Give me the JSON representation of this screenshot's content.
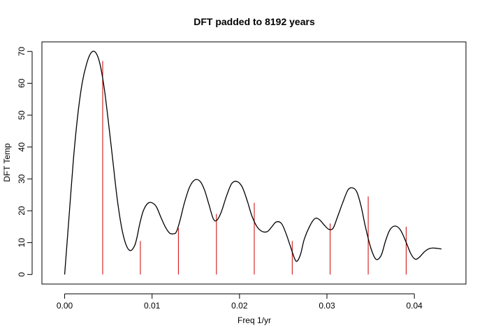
{
  "chart_data": {
    "type": "line",
    "title": "DFT padded to 8192 years",
    "xlabel": "Freq 1/yr",
    "ylabel": "DFT Temp",
    "xlim": [
      -0.0026,
      0.0459
    ],
    "ylim": [
      -3,
      73
    ],
    "xticks": [
      0.0,
      0.01,
      0.02,
      0.03,
      0.04
    ],
    "xtick_labels": [
      "0.00",
      "0.01",
      "0.02",
      "0.03",
      "0.04"
    ],
    "yticks": [
      0,
      10,
      20,
      30,
      40,
      50,
      60,
      70
    ],
    "ytick_labels": [
      "0",
      "10",
      "20",
      "30",
      "40",
      "50",
      "60",
      "70"
    ],
    "grid": false,
    "series": [
      {
        "color": "#000000",
        "x": [
          0.0,
          0.0005,
          0.001,
          0.0015,
          0.002,
          0.0025,
          0.003,
          0.0035,
          0.004,
          0.0045,
          0.005,
          0.0055,
          0.006,
          0.0065,
          0.007,
          0.0075,
          0.008,
          0.0083,
          0.0086,
          0.009,
          0.0095,
          0.01,
          0.0105,
          0.011,
          0.0115,
          0.012,
          0.0125,
          0.0128,
          0.0132,
          0.0137,
          0.0143,
          0.0149,
          0.0155,
          0.016,
          0.0165,
          0.017,
          0.0174,
          0.0179,
          0.0185,
          0.0191,
          0.0197,
          0.0203,
          0.0209,
          0.0214,
          0.022,
          0.0226,
          0.0232,
          0.0237,
          0.0242,
          0.0248,
          0.0253,
          0.0258,
          0.0263,
          0.0266,
          0.027,
          0.0274,
          0.028,
          0.0286,
          0.0291,
          0.0297,
          0.0302,
          0.0307,
          0.0312,
          0.0318,
          0.0324,
          0.0329,
          0.0334,
          0.0339,
          0.0344,
          0.035,
          0.0356,
          0.0362,
          0.0367,
          0.0372,
          0.0378,
          0.0384,
          0.039,
          0.0396,
          0.0401,
          0.0406,
          0.0411,
          0.0416,
          0.0421,
          0.0426,
          0.0431
        ],
        "y": [
          0,
          18,
          36,
          50,
          60,
          66,
          69.5,
          69.8,
          66.5,
          59,
          48,
          36,
          24,
          15,
          9.5,
          7.5,
          9,
          12,
          16,
          20,
          22.3,
          22.5,
          21.2,
          18,
          15,
          13,
          12.8,
          13.5,
          17,
          22.5,
          27.5,
          29.7,
          29.2,
          26.5,
          22,
          17.5,
          17,
          19.5,
          24.5,
          28.5,
          29.2,
          27.5,
          23,
          18.5,
          15,
          13.5,
          13.5,
          15,
          16.5,
          16,
          13,
          9,
          5,
          4.2,
          6.5,
          11,
          15,
          17.5,
          17.3,
          15.5,
          14.2,
          14.5,
          18,
          22.5,
          26.5,
          27.2,
          26,
          21.5,
          15,
          8.5,
          4.8,
          6,
          10.5,
          14,
          15.2,
          14,
          10.5,
          6.5,
          4.8,
          5.5,
          7,
          8,
          8.3,
          8.2,
          8
        ]
      }
    ],
    "spikes": {
      "color": "#cc0000",
      "x": [
        0.00435,
        0.00866,
        0.01301,
        0.01736,
        0.02169,
        0.02603,
        0.03037,
        0.03472,
        0.03906
      ],
      "y": [
        67,
        10.5,
        14.5,
        19,
        22.5,
        10.5,
        16,
        24.5,
        15
      ]
    }
  }
}
